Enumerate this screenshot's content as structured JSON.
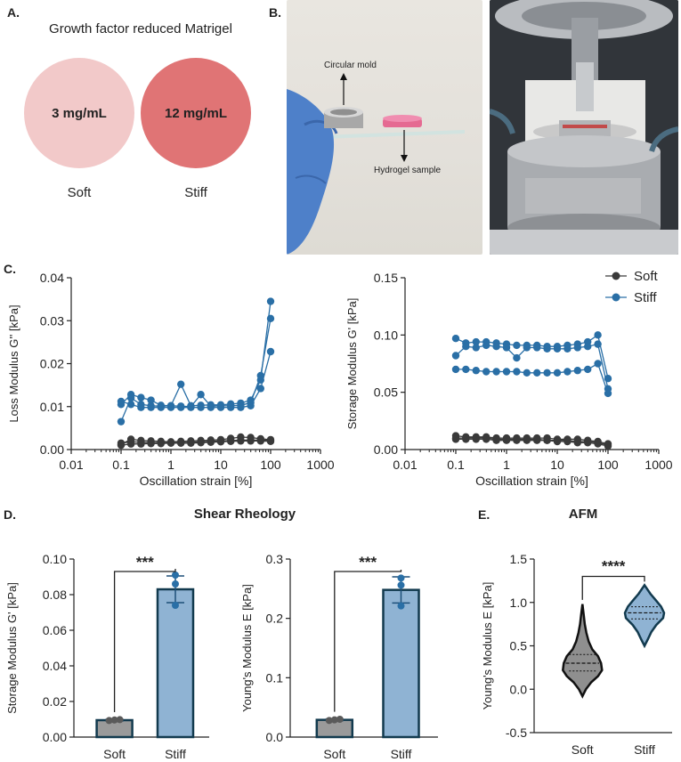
{
  "panel_labels": {
    "a": "A.",
    "b": "B.",
    "c": "C.",
    "d": "D.",
    "e": "E."
  },
  "panel_a": {
    "title": "Growth factor reduced Matrigel",
    "soft": {
      "concentration": "3 mg/mL",
      "label": "Soft",
      "color": "#f2c9c9"
    },
    "stiff": {
      "concentration": "12 mg/mL",
      "label": "Stiff",
      "color": "#e07475"
    }
  },
  "panel_b": {
    "annotation_mold": "Circular mold",
    "annotation_sample": "Hydrogel sample"
  },
  "colors": {
    "soft": "#3a3a3a",
    "stiff": "#2a6fa6",
    "soft_bar": "#9a9a9a",
    "stiff_bar": "#8fb3d3",
    "bar_edge": "#123a4e"
  },
  "legend": {
    "soft": "Soft",
    "stiff": "Stiff"
  },
  "chart_data": [
    {
      "id": "loss",
      "type": "line",
      "xscale": "log",
      "xlabel": "Oscillation strain [%]",
      "ylabel": "Loss Modulus G'' [kPa]",
      "xlim": [
        0.01,
        1000
      ],
      "ylim": [
        0,
        0.04
      ],
      "xticks": [
        "0.01",
        "0.1",
        "1",
        "10",
        "100",
        "1000"
      ],
      "yticks": [
        "0.00",
        "0.01",
        "0.02",
        "0.03",
        "0.04"
      ],
      "x": [
        0.1,
        0.158,
        0.251,
        0.398,
        0.631,
        1,
        1.585,
        2.512,
        3.981,
        6.31,
        10,
        15.85,
        25.12,
        39.81,
        63.1,
        100
      ],
      "series": [
        {
          "name": "Stiff",
          "color": "stiff",
          "values": [
            0.0065,
            0.012,
            0.0105,
            0.0102,
            0.0101,
            0.0102,
            0.0152,
            0.0102,
            0.0103,
            0.0104,
            0.0104,
            0.0106,
            0.0108,
            0.0115,
            0.0162,
            0.0345
          ]
        },
        {
          "name": "Stiff",
          "color": "stiff",
          "values": [
            0.0105,
            0.0128,
            0.0121,
            0.0115,
            0.0103,
            0.0102,
            0.0101,
            0.01,
            0.0128,
            0.0101,
            0.0102,
            0.0102,
            0.0103,
            0.0109,
            0.0172,
            0.0305
          ]
        },
        {
          "name": "Stiff",
          "color": "stiff",
          "values": [
            0.0112,
            0.0105,
            0.0098,
            0.0098,
            0.0098,
            0.0098,
            0.0098,
            0.0098,
            0.0098,
            0.0098,
            0.0098,
            0.0098,
            0.0098,
            0.0102,
            0.0142,
            0.0228
          ]
        },
        {
          "name": "Soft",
          "color": "soft",
          "values": [
            0.0012,
            0.0024,
            0.0021,
            0.002,
            0.0019,
            0.0018,
            0.0019,
            0.002,
            0.0021,
            0.0022,
            0.0023,
            0.0026,
            0.0029,
            0.0028,
            0.0025,
            0.0023
          ]
        },
        {
          "name": "Soft",
          "color": "soft",
          "values": [
            0.0015,
            0.0018,
            0.0017,
            0.0016,
            0.0016,
            0.0016,
            0.0016,
            0.0017,
            0.0018,
            0.0019,
            0.002,
            0.0021,
            0.0022,
            0.0022,
            0.0022,
            0.0021
          ]
        },
        {
          "name": "Soft",
          "color": "soft",
          "values": [
            0.001,
            0.0013,
            0.0013,
            0.0014,
            0.0014,
            0.0015,
            0.0015,
            0.0015,
            0.0016,
            0.0017,
            0.0018,
            0.0019,
            0.002,
            0.002,
            0.002,
            0.0019
          ]
        }
      ]
    },
    {
      "id": "storage",
      "type": "line",
      "xscale": "log",
      "xlabel": "Oscillation strain [%]",
      "ylabel": "Storage Modulus G' [kPa]",
      "xlim": [
        0.01,
        1000
      ],
      "ylim": [
        0,
        0.15
      ],
      "xticks": [
        "0.01",
        "0.1",
        "1",
        "10",
        "100",
        "1000"
      ],
      "yticks": [
        "0.00",
        "0.05",
        "0.10",
        "0.15"
      ],
      "legend": "top-right",
      "x": [
        0.1,
        0.158,
        0.251,
        0.398,
        0.631,
        1,
        1.585,
        2.512,
        3.981,
        6.31,
        10,
        15.85,
        25.12,
        39.81,
        63.1,
        100
      ],
      "series": [
        {
          "name": "Stiff",
          "color": "stiff",
          "values": [
            0.097,
            0.093,
            0.094,
            0.094,
            0.093,
            0.092,
            0.091,
            0.091,
            0.091,
            0.09,
            0.09,
            0.091,
            0.092,
            0.094,
            0.1,
            0.062
          ]
        },
        {
          "name": "Stiff",
          "color": "stiff",
          "values": [
            0.082,
            0.09,
            0.089,
            0.091,
            0.09,
            0.089,
            0.08,
            0.089,
            0.089,
            0.088,
            0.088,
            0.088,
            0.089,
            0.09,
            0.092,
            0.053
          ]
        },
        {
          "name": "Stiff",
          "color": "stiff",
          "values": [
            0.07,
            0.07,
            0.069,
            0.068,
            0.068,
            0.068,
            0.068,
            0.067,
            0.067,
            0.067,
            0.067,
            0.068,
            0.069,
            0.07,
            0.075,
            0.049
          ]
        },
        {
          "name": "Soft",
          "color": "soft",
          "values": [
            0.012,
            0.011,
            0.011,
            0.011,
            0.01,
            0.01,
            0.01,
            0.01,
            0.01,
            0.01,
            0.009,
            0.009,
            0.009,
            0.008,
            0.007,
            0.005
          ]
        },
        {
          "name": "Soft",
          "color": "soft",
          "values": [
            0.01,
            0.01,
            0.01,
            0.01,
            0.009,
            0.009,
            0.009,
            0.009,
            0.009,
            0.008,
            0.008,
            0.008,
            0.007,
            0.007,
            0.006,
            0.004
          ]
        },
        {
          "name": "Soft",
          "color": "soft",
          "values": [
            0.009,
            0.009,
            0.009,
            0.009,
            0.008,
            0.008,
            0.008,
            0.008,
            0.008,
            0.008,
            0.007,
            0.007,
            0.006,
            0.006,
            0.005,
            0.003
          ]
        }
      ]
    },
    {
      "id": "bar_g",
      "type": "bar",
      "title": "Shear Rheology",
      "categories": [
        "Soft",
        "Stiff"
      ],
      "values": [
        0.0095,
        0.083
      ],
      "sem": [
        0.0005,
        0.0075
      ],
      "points": [
        [
          0.0093,
          0.0096,
          0.0098
        ],
        [
          0.091,
          0.086,
          0.074
        ]
      ],
      "ylabel": "Storage Modulus G' [kPa]",
      "ylim": [
        0,
        0.1
      ],
      "yticks": [
        "0.00",
        "0.02",
        "0.04",
        "0.06",
        "0.08",
        "0.10"
      ],
      "significance": "***"
    },
    {
      "id": "bar_e",
      "type": "bar",
      "categories": [
        "Soft",
        "Stiff"
      ],
      "values": [
        0.029,
        0.248
      ],
      "sem": [
        0.0015,
        0.022
      ],
      "points": [
        [
          0.028,
          0.029,
          0.03
        ],
        [
          0.268,
          0.256,
          0.221
        ]
      ],
      "ylabel": "Young's Modulus E [kPa]",
      "ylim": [
        0,
        0.3
      ],
      "yticks": [
        "0.0",
        "0.1",
        "0.2",
        "0.3"
      ],
      "significance": "***"
    },
    {
      "id": "afm",
      "type": "violin",
      "title": "AFM",
      "categories": [
        "Soft",
        "Stiff"
      ],
      "ylabel": "Young's Modulus E [kPa]",
      "ylim": [
        -0.5,
        1.5
      ],
      "yticks": [
        "-0.5",
        "0.0",
        "0.5",
        "1.0",
        "1.5"
      ],
      "distributions": [
        {
          "min": -0.08,
          "max": 0.98,
          "q1": 0.21,
          "median": 0.3,
          "q3": 0.4,
          "profile": [
            [
              -0.08,
              0.0
            ],
            [
              0.0,
              0.18
            ],
            [
              0.08,
              0.45
            ],
            [
              0.15,
              0.8
            ],
            [
              0.22,
              1.0
            ],
            [
              0.3,
              0.95
            ],
            [
              0.38,
              0.8
            ],
            [
              0.46,
              0.5
            ],
            [
              0.55,
              0.32
            ],
            [
              0.65,
              0.2
            ],
            [
              0.75,
              0.12
            ],
            [
              0.85,
              0.07
            ],
            [
              0.98,
              0.0
            ]
          ]
        },
        {
          "min": 0.5,
          "max": 1.2,
          "q1": 0.81,
          "median": 0.88,
          "q3": 0.95,
          "profile": [
            [
              0.5,
              0.0
            ],
            [
              0.58,
              0.18
            ],
            [
              0.66,
              0.35
            ],
            [
              0.74,
              0.6
            ],
            [
              0.82,
              0.95
            ],
            [
              0.88,
              1.0
            ],
            [
              0.95,
              0.85
            ],
            [
              1.02,
              0.6
            ],
            [
              1.1,
              0.3
            ],
            [
              1.2,
              0.0
            ]
          ]
        }
      ],
      "significance": "****"
    }
  ]
}
